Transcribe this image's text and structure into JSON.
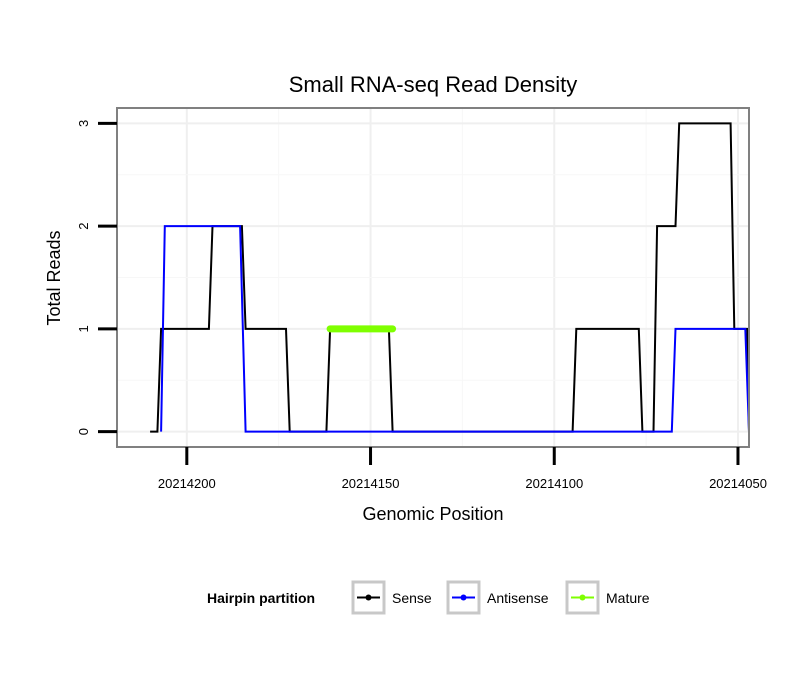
{
  "chart_data": {
    "type": "line",
    "title": "Small RNA-seq Read Density",
    "xlabel": "Genomic Position",
    "ylabel": "Total Reads",
    "x_reversed": true,
    "xlim": [
      20214219,
      20214047
    ],
    "ylim": [
      -0.15,
      3.15
    ],
    "x_ticks": [
      20214200,
      20214150,
      20214100,
      20214050
    ],
    "x_tick_labels": [
      "20214200",
      "20214150",
      "20214100",
      "20214050"
    ],
    "y_ticks": [
      0,
      1,
      2,
      3
    ],
    "y_tick_labels": [
      "0",
      "1",
      "2",
      "3"
    ],
    "grid": true,
    "legend": {
      "title": "Hairpin partition",
      "position": "bottom",
      "entries": [
        {
          "name": "Sense",
          "color": "#000000"
        },
        {
          "name": "Antisense",
          "color": "#0000ff"
        },
        {
          "name": "Mature",
          "color": "#7fff00"
        }
      ]
    },
    "series": [
      {
        "name": "Sense",
        "color": "#000000",
        "x": [
          20214210,
          20214208,
          20214207,
          20214194,
          20214193,
          20214185,
          20214184,
          20214173,
          20214172,
          20214162,
          20214161,
          20214145,
          20214144,
          20214095,
          20214094,
          20214077,
          20214076,
          20214073,
          20214072,
          20214067,
          20214066,
          20214052,
          20214051,
          20214047.5,
          20214047
        ],
        "y": [
          0,
          0,
          1,
          1,
          2,
          2,
          1,
          1,
          0,
          0,
          1,
          1,
          0,
          0,
          1,
          1,
          0,
          0,
          2,
          2,
          3,
          3,
          1,
          1,
          0
        ]
      },
      {
        "name": "Antisense",
        "color": "#0000ff",
        "x": [
          20214207,
          20214206,
          20214185.5,
          20214184,
          20214077,
          20214068,
          20214067,
          20214048,
          20214047
        ],
        "y": [
          0,
          2,
          2,
          0,
          0,
          0,
          1,
          1,
          0
        ]
      },
      {
        "name": "Mature",
        "color": "#7fff00",
        "x": [
          20214161,
          20214144
        ],
        "y": [
          1,
          1
        ]
      }
    ]
  }
}
